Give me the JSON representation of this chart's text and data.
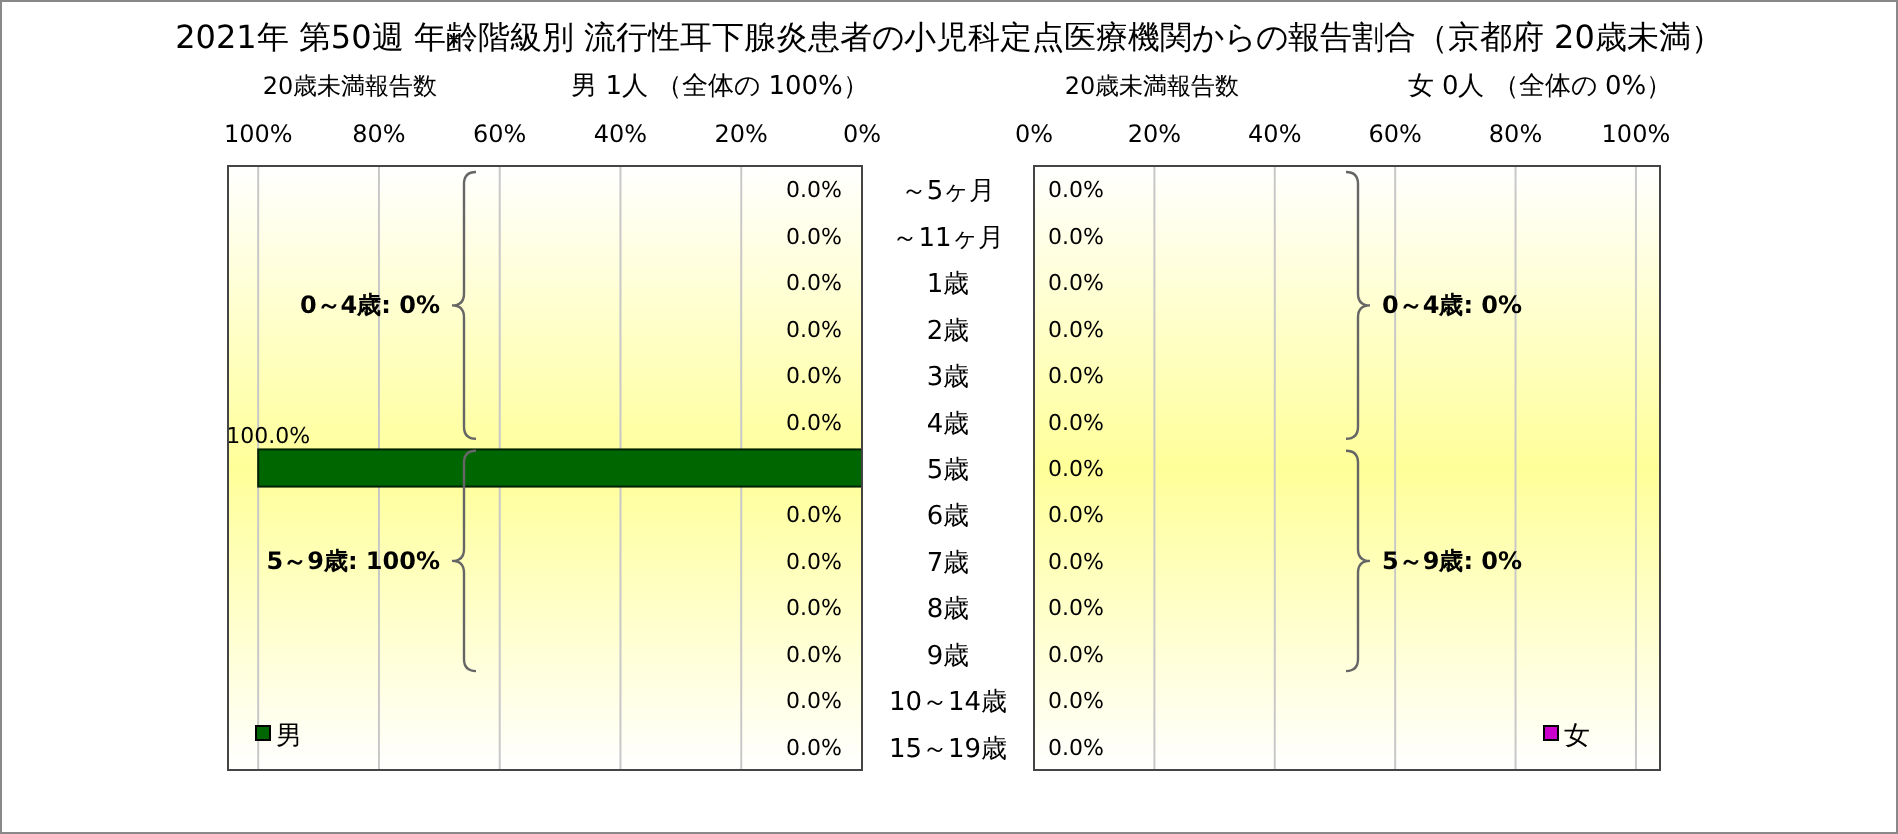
{
  "chart_data": [
    {
      "type": "bar",
      "orientation": "horizontal",
      "title": "2021年 第50週 年齢階級別 流行性耳下腺炎患者の小児科定点医療機関からの報告割合（京都府 20歳未満）",
      "subtitle": "20歳未満報告数",
      "categories": [
        "～5ヶ月",
        "～11ヶ月",
        "1歳",
        "2歳",
        "3歳",
        "4歳",
        "5歳",
        "6歳",
        "7歳",
        "8歳",
        "9歳",
        "10～14歳",
        "15～19歳"
      ],
      "series": [
        {
          "name": "男",
          "color": "#006600",
          "values": [
            0,
            0,
            0,
            0,
            0,
            0,
            100,
            0,
            0,
            0,
            0,
            0,
            0
          ],
          "value_labels": [
            "0.0%",
            "0.0%",
            "0.0%",
            "0.0%",
            "0.0%",
            "0.0%",
            "100.0%",
            "0.0%",
            "0.0%",
            "0.0%",
            "0.0%",
            "0.0%",
            "0.0%"
          ]
        }
      ],
      "xlim": [
        105,
        0
      ],
      "xticks": [
        {
          "value": 100,
          "label": "100%"
        },
        {
          "value": 80,
          "label": "80%"
        },
        {
          "value": 60,
          "label": "60%"
        },
        {
          "value": 40,
          "label": "40%"
        },
        {
          "value": 20,
          "label": "20%"
        },
        {
          "value": 0,
          "label": "0%"
        }
      ],
      "grid": "x",
      "legend": "bottom left",
      "annotations": [
        "男 1人 （全体の 100%）",
        "0～4歳: 0%",
        "5～9歳: 100%"
      ]
    },
    {
      "type": "bar",
      "orientation": "horizontal",
      "title": "女 0人 （全体の 0%）",
      "subtitle": "20歳未満報告数",
      "categories": [
        null,
        null,
        null,
        null,
        null,
        null,
        null,
        null,
        null,
        null,
        null,
        null,
        null
      ],
      "series": [
        {
          "name": "女",
          "color": "#cc00cc",
          "values": [
            0,
            0,
            0,
            0,
            0,
            0,
            0,
            0,
            0,
            0,
            0,
            0,
            0
          ],
          "value_labels": [
            "0.0%",
            "0.0%",
            "0.0%",
            "0.0%",
            "0.0%",
            "0.0%",
            "0.0%",
            "0.0%",
            "0.0%",
            "0.0%",
            "0.0%",
            "0.0%",
            "0.0%"
          ]
        }
      ],
      "xlim": [
        0,
        104
      ],
      "xticks": [
        {
          "value": 0,
          "label": "0%"
        },
        {
          "value": 20,
          "label": "20%"
        },
        {
          "value": 40,
          "label": "40%"
        },
        {
          "value": 60,
          "label": "60%"
        },
        {
          "value": 80,
          "label": "80%"
        },
        {
          "value": 100,
          "label": "100%"
        }
      ],
      "grid": "x",
      "legend": "bottom right",
      "tick_labels": "x",
      "annotations": [
        "0～4歳: 0%",
        "5～9歳: 0%"
      ]
    }
  ]
}
